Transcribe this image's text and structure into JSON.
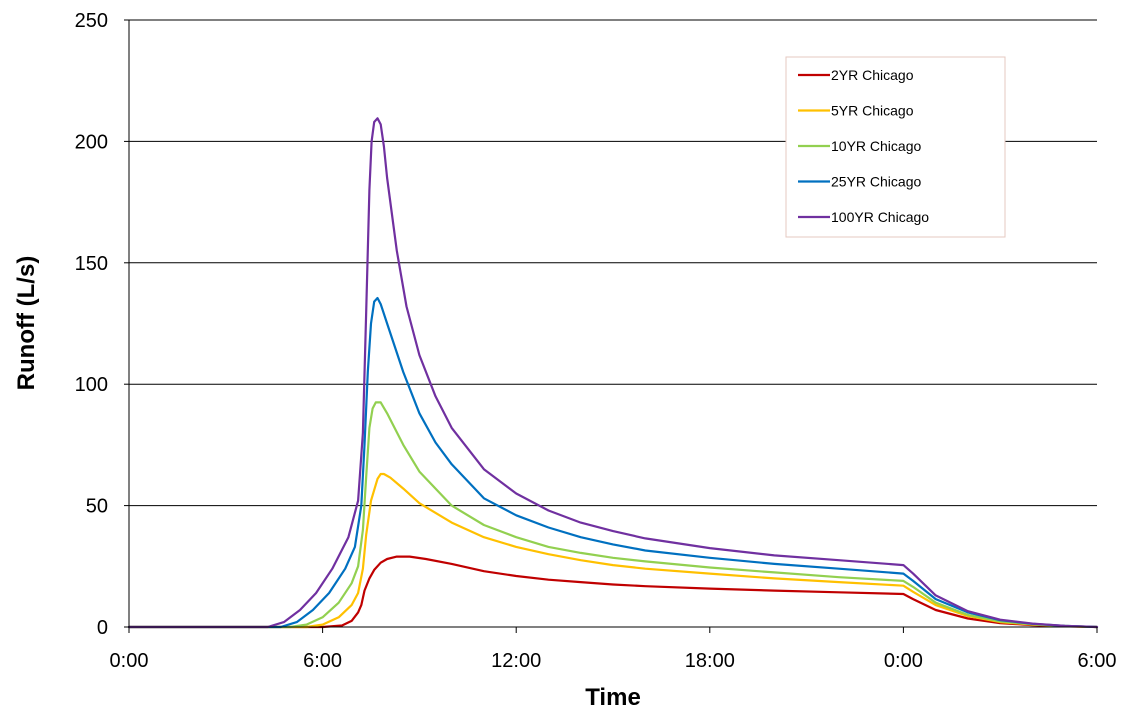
{
  "chart_data": {
    "type": "line",
    "title": "",
    "xlabel": "Time",
    "ylabel": "Runoff (L/s)",
    "xlim": [
      0,
      30
    ],
    "ylim": [
      0,
      250
    ],
    "x_unit": "hours",
    "x_ticks": [
      {
        "value": 0,
        "label": "0:00"
      },
      {
        "value": 6,
        "label": "6:00"
      },
      {
        "value": 12,
        "label": "12:00"
      },
      {
        "value": 18,
        "label": "18:00"
      },
      {
        "value": 24,
        "label": "0:00"
      },
      {
        "value": 30,
        "label": "6:00"
      }
    ],
    "y_ticks": [
      0,
      50,
      100,
      150,
      200,
      250
    ],
    "grid": "horizontal",
    "legend_position": "top-right",
    "series": [
      {
        "name": "2YR Chicago",
        "color": "#C00000",
        "points": [
          [
            0,
            0
          ],
          [
            6.0,
            0
          ],
          [
            6.6,
            0.6
          ],
          [
            6.9,
            2.5
          ],
          [
            7.1,
            6
          ],
          [
            7.2,
            9
          ],
          [
            7.3,
            15
          ],
          [
            7.45,
            20
          ],
          [
            7.6,
            23.5
          ],
          [
            7.8,
            26.5
          ],
          [
            8.0,
            28
          ],
          [
            8.3,
            29
          ],
          [
            8.7,
            29
          ],
          [
            9.2,
            28
          ],
          [
            10,
            26
          ],
          [
            11,
            23
          ],
          [
            12,
            21
          ],
          [
            13,
            19.5
          ],
          [
            14,
            18.5
          ],
          [
            15,
            17.5
          ],
          [
            16,
            16.8
          ],
          [
            18,
            15.8
          ],
          [
            20,
            15
          ],
          [
            22,
            14.3
          ],
          [
            24,
            13.6
          ],
          [
            24.3,
            11.5
          ],
          [
            25,
            7
          ],
          [
            26,
            3.5
          ],
          [
            27,
            1.6
          ],
          [
            28,
            0.8
          ],
          [
            29,
            0.3
          ],
          [
            30,
            0
          ]
        ]
      },
      {
        "name": "5YR Chicago",
        "color": "#FFC000",
        "points": [
          [
            0,
            0
          ],
          [
            5.5,
            0
          ],
          [
            6.0,
            1
          ],
          [
            6.5,
            4
          ],
          [
            6.9,
            9
          ],
          [
            7.1,
            14
          ],
          [
            7.25,
            24
          ],
          [
            7.35,
            38
          ],
          [
            7.5,
            52
          ],
          [
            7.7,
            61
          ],
          [
            7.8,
            63
          ],
          [
            7.9,
            63
          ],
          [
            8.1,
            61.5
          ],
          [
            8.5,
            57
          ],
          [
            9,
            51
          ],
          [
            10,
            43
          ],
          [
            11,
            37
          ],
          [
            12,
            33
          ],
          [
            13,
            30
          ],
          [
            14,
            27.5
          ],
          [
            15,
            25.5
          ],
          [
            16,
            24
          ],
          [
            18,
            22
          ],
          [
            20,
            20
          ],
          [
            22,
            18.5
          ],
          [
            24,
            17
          ],
          [
            24.3,
            14.5
          ],
          [
            25,
            9
          ],
          [
            26,
            4.5
          ],
          [
            27,
            2
          ],
          [
            28,
            1
          ],
          [
            29,
            0.4
          ],
          [
            30,
            0
          ]
        ]
      },
      {
        "name": "10YR Chicago",
        "color": "#92D050",
        "points": [
          [
            0,
            0
          ],
          [
            5.0,
            0
          ],
          [
            5.5,
            1
          ],
          [
            6.0,
            4
          ],
          [
            6.5,
            10
          ],
          [
            6.9,
            18
          ],
          [
            7.1,
            25
          ],
          [
            7.25,
            40
          ],
          [
            7.35,
            62
          ],
          [
            7.45,
            82
          ],
          [
            7.55,
            90
          ],
          [
            7.65,
            92.5
          ],
          [
            7.8,
            92.5
          ],
          [
            8.0,
            88
          ],
          [
            8.5,
            75
          ],
          [
            9,
            64
          ],
          [
            10,
            50
          ],
          [
            11,
            42
          ],
          [
            12,
            37
          ],
          [
            13,
            33
          ],
          [
            14,
            30.5
          ],
          [
            15,
            28.5
          ],
          [
            16,
            27
          ],
          [
            18,
            24.5
          ],
          [
            20,
            22.5
          ],
          [
            22,
            20.5
          ],
          [
            24,
            19
          ],
          [
            24.3,
            16.5
          ],
          [
            25,
            10
          ],
          [
            26,
            5
          ],
          [
            27,
            2.3
          ],
          [
            28,
            1.1
          ],
          [
            29,
            0.4
          ],
          [
            30,
            0
          ]
        ]
      },
      {
        "name": "25YR Chicago",
        "color": "#0070C0",
        "points": [
          [
            0,
            0
          ],
          [
            4.7,
            0
          ],
          [
            5.2,
            2
          ],
          [
            5.7,
            7
          ],
          [
            6.2,
            14
          ],
          [
            6.7,
            24
          ],
          [
            7.0,
            33
          ],
          [
            7.2,
            50
          ],
          [
            7.3,
            75
          ],
          [
            7.4,
            105
          ],
          [
            7.5,
            125
          ],
          [
            7.6,
            134
          ],
          [
            7.7,
            135.5
          ],
          [
            7.8,
            133
          ],
          [
            8.0,
            125
          ],
          [
            8.5,
            105
          ],
          [
            9,
            88
          ],
          [
            9.5,
            76
          ],
          [
            10,
            67
          ],
          [
            11,
            53
          ],
          [
            12,
            46
          ],
          [
            13,
            41
          ],
          [
            14,
            37
          ],
          [
            15,
            34
          ],
          [
            16,
            31.5
          ],
          [
            18,
            28.5
          ],
          [
            20,
            26
          ],
          [
            22,
            24
          ],
          [
            24,
            22
          ],
          [
            24.3,
            19
          ],
          [
            25,
            11.5
          ],
          [
            26,
            6
          ],
          [
            27,
            2.8
          ],
          [
            28,
            1.3
          ],
          [
            29,
            0.5
          ],
          [
            30,
            0
          ]
        ]
      },
      {
        "name": "100YR Chicago",
        "color": "#7030A0",
        "points": [
          [
            0,
            0
          ],
          [
            4.3,
            0
          ],
          [
            4.8,
            2
          ],
          [
            5.3,
            7
          ],
          [
            5.8,
            14
          ],
          [
            6.3,
            24
          ],
          [
            6.8,
            37
          ],
          [
            7.1,
            52
          ],
          [
            7.25,
            80
          ],
          [
            7.35,
            130
          ],
          [
            7.45,
            180
          ],
          [
            7.52,
            200
          ],
          [
            7.6,
            208
          ],
          [
            7.7,
            209.5
          ],
          [
            7.8,
            207
          ],
          [
            7.9,
            198
          ],
          [
            8.0,
            185
          ],
          [
            8.3,
            155
          ],
          [
            8.6,
            132
          ],
          [
            9,
            112
          ],
          [
            9.5,
            95
          ],
          [
            10,
            82
          ],
          [
            11,
            65
          ],
          [
            12,
            55
          ],
          [
            13,
            48
          ],
          [
            14,
            43
          ],
          [
            15,
            39.5
          ],
          [
            16,
            36.5
          ],
          [
            18,
            32.5
          ],
          [
            20,
            29.5
          ],
          [
            22,
            27.5
          ],
          [
            24,
            25.5
          ],
          [
            24.3,
            22
          ],
          [
            25,
            13
          ],
          [
            26,
            6.5
          ],
          [
            27,
            3
          ],
          [
            28,
            1.4
          ],
          [
            29,
            0.5
          ],
          [
            30,
            0
          ]
        ]
      }
    ]
  }
}
